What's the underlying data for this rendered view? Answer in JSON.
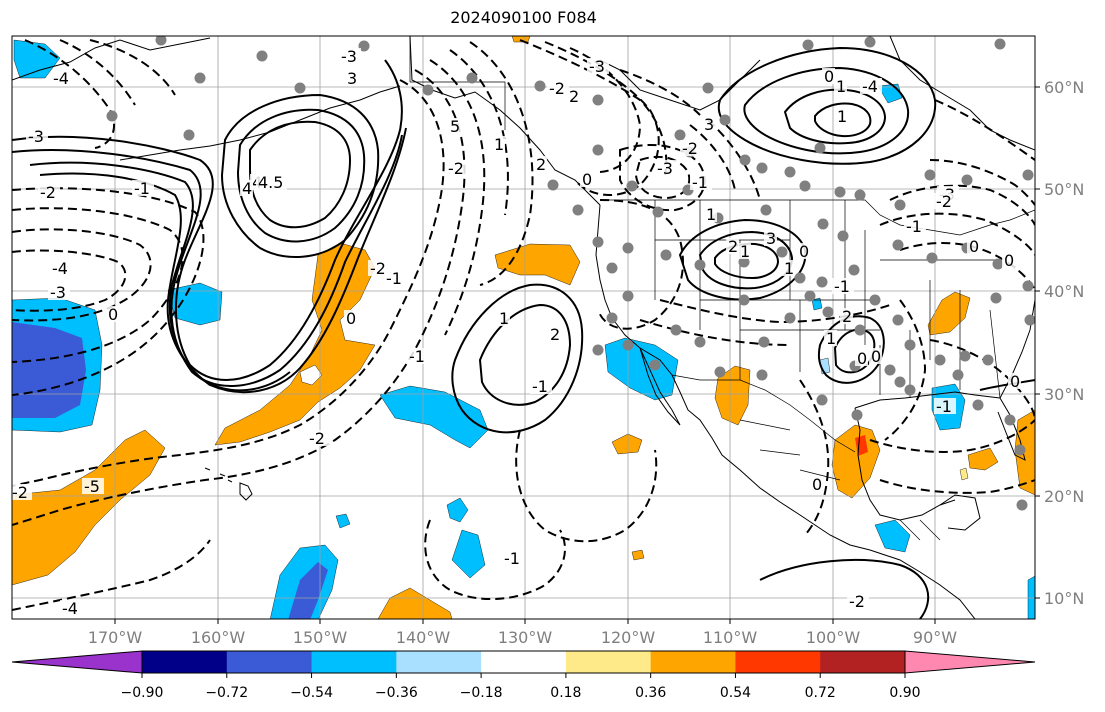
{
  "title": "2024090100 F084",
  "map": {
    "lon_ticks": [
      "170°W",
      "160°W",
      "150°W",
      "140°W",
      "130°W",
      "120°W",
      "110°W",
      "100°W",
      "90°W"
    ],
    "lat_ticks": [
      "60°N",
      "50°N",
      "40°N",
      "30°N",
      "20°N",
      "10°N"
    ],
    "contour_labels": [
      "-3",
      "-4",
      "-3",
      "-2",
      "-1",
      "-4",
      "-3",
      "-2",
      "-5",
      "-4",
      "-2",
      "-1",
      "-1",
      "0",
      "0",
      "-1",
      "-2",
      "-1",
      "-2",
      "0",
      "-2",
      "-3",
      "-3",
      "-2",
      "-1",
      "-3",
      "-2",
      "-1",
      "0",
      "0",
      "0",
      "0",
      "-1",
      "0",
      "-2",
      "-1",
      "0",
      "1",
      "2",
      "1",
      "2",
      "3",
      "3",
      "4",
      "4",
      "5",
      "4.5",
      "1",
      "2",
      "1",
      "2",
      "3",
      "1",
      "0",
      "1",
      "2",
      "1",
      "0",
      "1",
      "-4"
    ]
  },
  "colorbar": {
    "colors": [
      "#9933cc",
      "#000088",
      "#3b5bd6",
      "#00bfff",
      "#aae0ff",
      "#ffffff",
      "#ffea8a",
      "#ffa500",
      "#ff3800",
      "#b22222",
      "#ff88b0"
    ],
    "tick_labels": [
      "−0.90",
      "−0.72",
      "−0.54",
      "−0.36",
      "−0.18",
      "0.18",
      "0.36",
      "0.54",
      "0.72",
      "0.90"
    ]
  },
  "colors": {
    "positive_fill": "#ffa500",
    "negative_fill": "#00bfff",
    "strong_negative_fill": "#3b5bd6",
    "station_dot": "#808080"
  }
}
